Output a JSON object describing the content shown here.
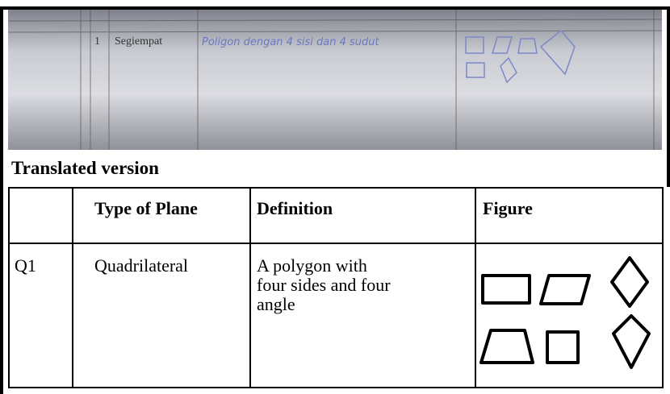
{
  "photo": {
    "row": {
      "number": "1",
      "name": "Segiempat",
      "definition": "Poligon dengan 4 sisi dan 4 sudut"
    }
  },
  "caption": "Translated version",
  "table": {
    "header": [
      "",
      "Type of Plane",
      "Definition",
      "Figure"
    ],
    "rows": [
      {
        "number": "Q1",
        "name": "Quadrilateral",
        "definition_lines": [
          "A polygon with",
          "four sides and four",
          "angle"
        ]
      }
    ]
  }
}
